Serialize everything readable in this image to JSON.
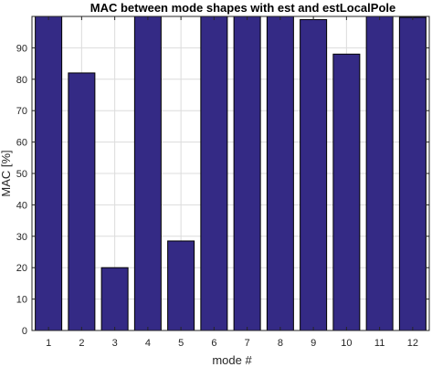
{
  "chart_data": {
    "type": "bar",
    "title": "MAC between mode shapes with est and estLocalPole",
    "xlabel": "mode #",
    "ylabel": "MAC [%]",
    "categories": [
      "1",
      "2",
      "3",
      "4",
      "5",
      "6",
      "7",
      "8",
      "9",
      "10",
      "11",
      "12"
    ],
    "values": [
      100,
      82,
      20,
      100,
      28.5,
      100,
      100,
      100,
      99,
      88,
      100,
      99.7
    ],
    "ylim": [
      0,
      100
    ],
    "yticks": [
      0,
      10,
      20,
      30,
      40,
      50,
      60,
      70,
      80,
      90
    ],
    "grid": true,
    "bar_color": "#342a85",
    "edge_color": "#000000"
  }
}
